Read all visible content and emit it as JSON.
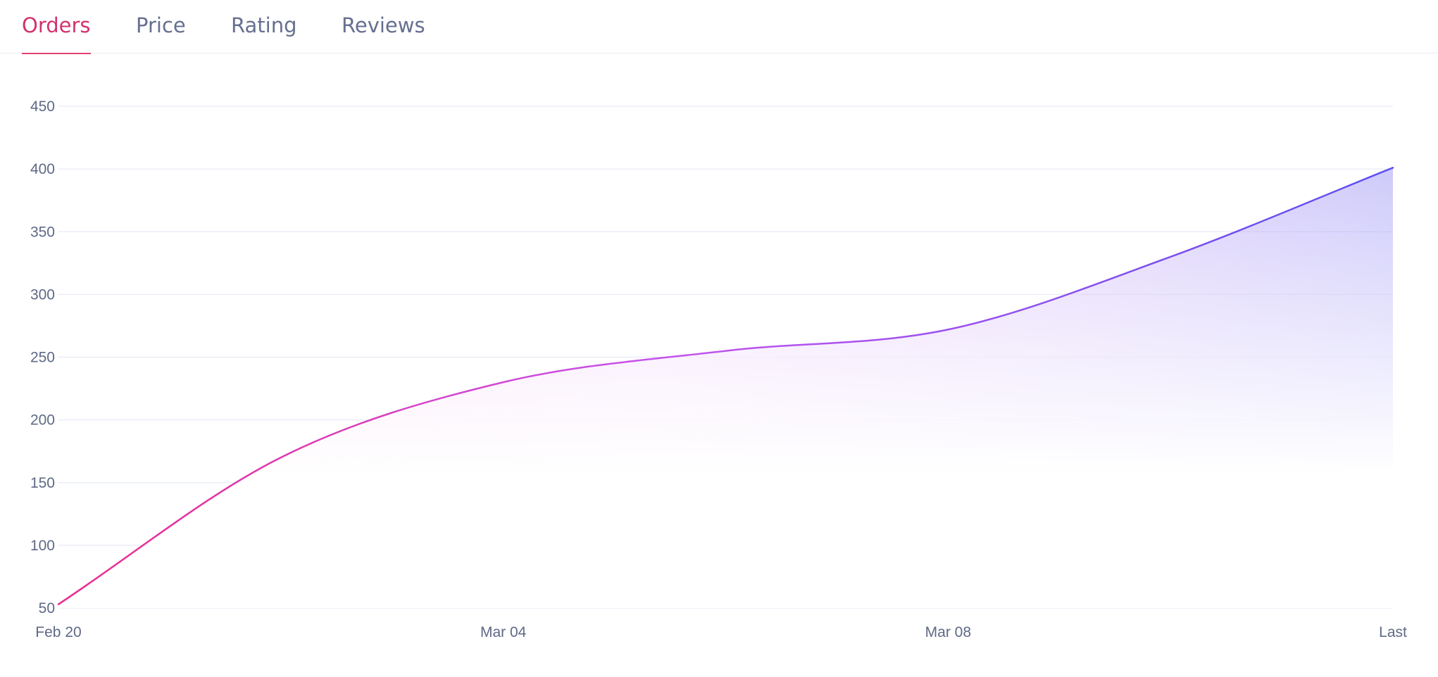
{
  "tabs": [
    {
      "label": "Orders",
      "active": true
    },
    {
      "label": "Price",
      "active": false
    },
    {
      "label": "Rating",
      "active": false
    },
    {
      "label": "Reviews",
      "active": false
    }
  ],
  "colors": {
    "active_tab": "#d3326c",
    "inactive_tab": "#66708f",
    "line_start": "#ec2a8c",
    "line_mid": "#c653ee",
    "line_end": "#5b4ff0",
    "grid": "#e8ebf6",
    "tick_text": "#5f6986"
  },
  "chart_data": {
    "type": "area",
    "title": "Orders",
    "xlabel": "",
    "ylabel": "",
    "x_ticks": [
      "Feb 20",
      "Mar 04",
      "Mar 08",
      "Last"
    ],
    "y_ticks": [
      50,
      100,
      150,
      200,
      250,
      300,
      350,
      400,
      450
    ],
    "ylim": [
      50,
      450
    ],
    "grid": true,
    "series": [
      {
        "name": "Orders",
        "x": [
          0,
          0.5,
          1,
          1.5,
          2,
          2.5,
          3
        ],
        "values": [
          53,
          170,
          230,
          255,
          272,
          330,
          401
        ]
      }
    ]
  }
}
